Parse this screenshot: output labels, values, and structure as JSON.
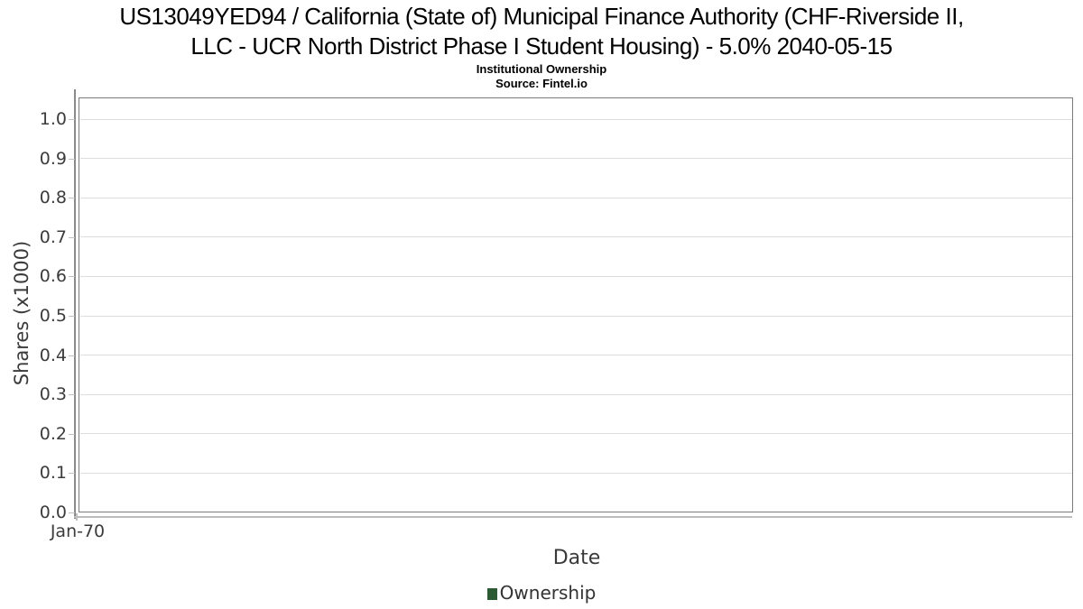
{
  "header": {
    "title_line1": "US13049YED94 / California (State of) Municipal Finance Authority (CHF-Riverside II,",
    "title_line2": "LLC - UCR North District Phase I Student Housing) - 5.0% 2040-05-15",
    "subtitle": "Institutional Ownership",
    "source": "Source: Fintel.io"
  },
  "chart_data": {
    "type": "line",
    "title": "US13049YED94 / California (State of) Municipal Finance Authority (CHF-Riverside II, LLC - UCR North District Phase I Student Housing) - 5.0% 2040-05-15",
    "subtitle": "Institutional Ownership",
    "source": "Source: Fintel.io",
    "xlabel": "Date",
    "ylabel": "Shares (x1000)",
    "x_tick_labels": [
      "Jan-70"
    ],
    "y_tick_labels": [
      "0.0",
      "0.1",
      "0.2",
      "0.3",
      "0.4",
      "0.5",
      "0.6",
      "0.7",
      "0.8",
      "0.9",
      "1.0"
    ],
    "ylim": [
      0.0,
      1.05
    ],
    "grid": true,
    "legend_position": "bottom-center",
    "series": [
      {
        "name": "Ownership",
        "color": "#2b5a33",
        "x": [],
        "values": []
      }
    ]
  },
  "colors": {
    "plot_border": "#7b7b7b",
    "gridline": "#dedede",
    "axis_line": "#8a8a8a",
    "axis_line_light": "#bcbcbc",
    "tick": "#c0c0c0",
    "tick_label": "#3c3c3c",
    "axis_title": "#3a3a3a",
    "legend_text": "#333333",
    "series_green": "#2b5a33"
  }
}
